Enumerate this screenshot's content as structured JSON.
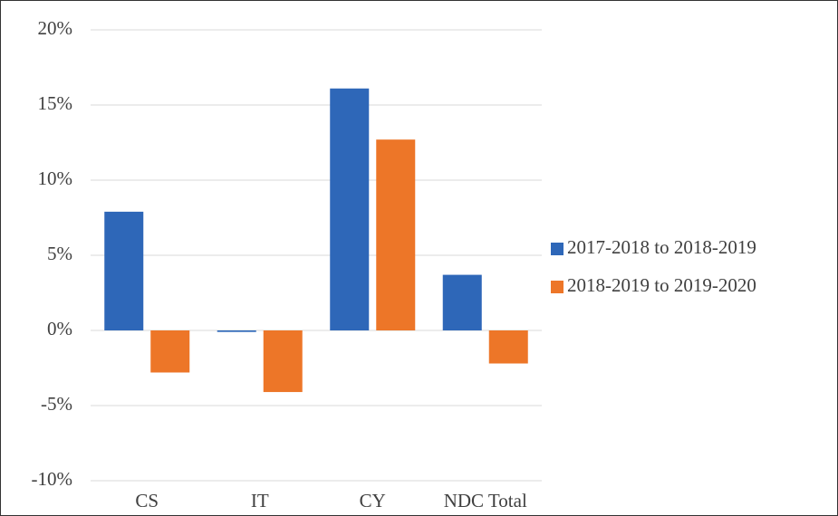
{
  "chart_data": {
    "type": "bar",
    "categories": [
      "CS",
      "IT",
      "CY",
      "NDC Total"
    ],
    "series": [
      {
        "name": "2017-2018 to 2018-2019",
        "color": "#2e67b8",
        "values": [
          7.9,
          -0.1,
          16.1,
          3.7
        ]
      },
      {
        "name": "2018-2019 to 2019-2020",
        "color": "#ed7628",
        "values": [
          -2.8,
          -4.1,
          12.7,
          -2.2
        ]
      }
    ],
    "ylim": [
      -10,
      20
    ],
    "yticks": [
      {
        "value": -10,
        "label": "-10%"
      },
      {
        "value": -5,
        "label": "-5%"
      },
      {
        "value": 0,
        "label": "0%"
      },
      {
        "value": 5,
        "label": "5%"
      },
      {
        "value": 10,
        "label": "10%"
      },
      {
        "value": 15,
        "label": "15%"
      },
      {
        "value": 20,
        "label": "20%"
      }
    ],
    "grid": true,
    "legend": "right"
  }
}
